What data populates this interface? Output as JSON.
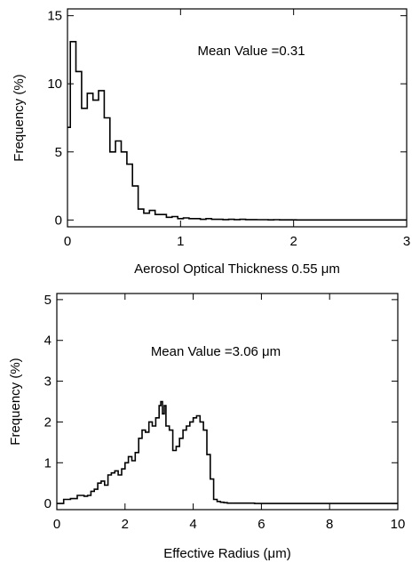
{
  "chart_data": [
    {
      "type": "histogram-step",
      "annotation": "Mean Value =0.31",
      "xlabel": "Aerosol Optical Thickness 0.55 μm",
      "ylabel": "Frequency (%)",
      "xlim": [
        0,
        3
      ],
      "ylim": [
        -0.5,
        15.5
      ],
      "xticks": [
        0,
        1,
        2,
        3
      ],
      "xtick_labels": [
        "0",
        "1",
        "2",
        "3"
      ],
      "yticks": [
        0,
        5,
        10,
        15
      ],
      "ytick_labels": [
        "0",
        "5",
        "10",
        "15"
      ],
      "grid": false,
      "color": "#000000",
      "bin_width": 0.05,
      "x": [
        0.0,
        0.025,
        0.075,
        0.125,
        0.175,
        0.225,
        0.275,
        0.325,
        0.375,
        0.425,
        0.475,
        0.525,
        0.575,
        0.625,
        0.675,
        0.725,
        0.775,
        0.825,
        0.875,
        0.925,
        0.975,
        1.025,
        1.075,
        1.125,
        1.175,
        1.225,
        1.275,
        1.325,
        1.375,
        1.425,
        1.475,
        1.525,
        1.575,
        1.625,
        1.675,
        1.725,
        1.775,
        1.825,
        1.875,
        1.925,
        1.975,
        2.025,
        2.125,
        2.225,
        2.325,
        2.5,
        2.75
      ],
      "y": [
        6.8,
        13.1,
        10.9,
        8.2,
        9.3,
        8.8,
        9.5,
        7.5,
        5.0,
        5.8,
        5.0,
        4.1,
        2.5,
        0.8,
        0.5,
        0.7,
        0.4,
        0.4,
        0.2,
        0.25,
        0.1,
        0.15,
        0.1,
        0.1,
        0.05,
        0.1,
        0.05,
        0.05,
        0.03,
        0.05,
        0.03,
        0.05,
        0.03,
        0.03,
        0.02,
        0.02,
        0.01,
        0.02,
        0.01,
        0.01,
        0.01,
        0.0,
        0.0,
        0.0,
        0.0,
        0.0,
        0.0
      ]
    },
    {
      "type": "histogram-step",
      "annotation": "Mean Value =3.06 μm",
      "xlabel": "Effective Radius (μm)",
      "ylabel": "Frequency (%)",
      "xlim": [
        0,
        10
      ],
      "ylim": [
        -0.15,
        5.15
      ],
      "xticks": [
        0,
        2,
        4,
        6,
        8,
        10
      ],
      "xtick_labels": [
        "0",
        "2",
        "4",
        "6",
        "8",
        "10"
      ],
      "yticks": [
        0,
        1,
        2,
        3,
        4,
        5
      ],
      "ytick_labels": [
        "0",
        "1",
        "2",
        "3",
        "4",
        "5"
      ],
      "grid": false,
      "color": "#000000",
      "x": [
        0.0,
        0.2,
        0.4,
        0.6,
        0.8,
        0.9,
        1.0,
        1.1,
        1.2,
        1.3,
        1.4,
        1.5,
        1.6,
        1.7,
        1.8,
        1.9,
        2.0,
        2.1,
        2.2,
        2.3,
        2.4,
        2.5,
        2.6,
        2.7,
        2.8,
        2.9,
        3.0,
        3.05,
        3.1,
        3.15,
        3.2,
        3.3,
        3.4,
        3.5,
        3.6,
        3.7,
        3.8,
        3.9,
        4.0,
        4.1,
        4.2,
        4.3,
        4.4,
        4.5,
        4.6,
        4.7,
        4.8,
        4.9,
        5.0,
        5.2,
        5.4,
        5.6,
        5.8,
        6.0,
        6.5,
        7.0,
        8.0,
        9.0,
        10.0
      ],
      "y": [
        0.0,
        0.1,
        0.12,
        0.2,
        0.18,
        0.2,
        0.3,
        0.35,
        0.5,
        0.55,
        0.45,
        0.7,
        0.75,
        0.8,
        0.7,
        0.85,
        1.0,
        1.15,
        1.05,
        1.25,
        1.6,
        1.8,
        1.75,
        2.0,
        1.9,
        2.1,
        2.4,
        2.5,
        2.2,
        2.4,
        1.9,
        1.8,
        1.3,
        1.4,
        1.6,
        1.8,
        1.9,
        2.0,
        2.1,
        2.15,
        2.0,
        1.8,
        1.2,
        0.6,
        0.1,
        0.05,
        0.03,
        0.02,
        0.01,
        0.01,
        0.01,
        0.01,
        0.0,
        0.0,
        0.0,
        0.0,
        0.0,
        0.0,
        0.0
      ]
    }
  ]
}
